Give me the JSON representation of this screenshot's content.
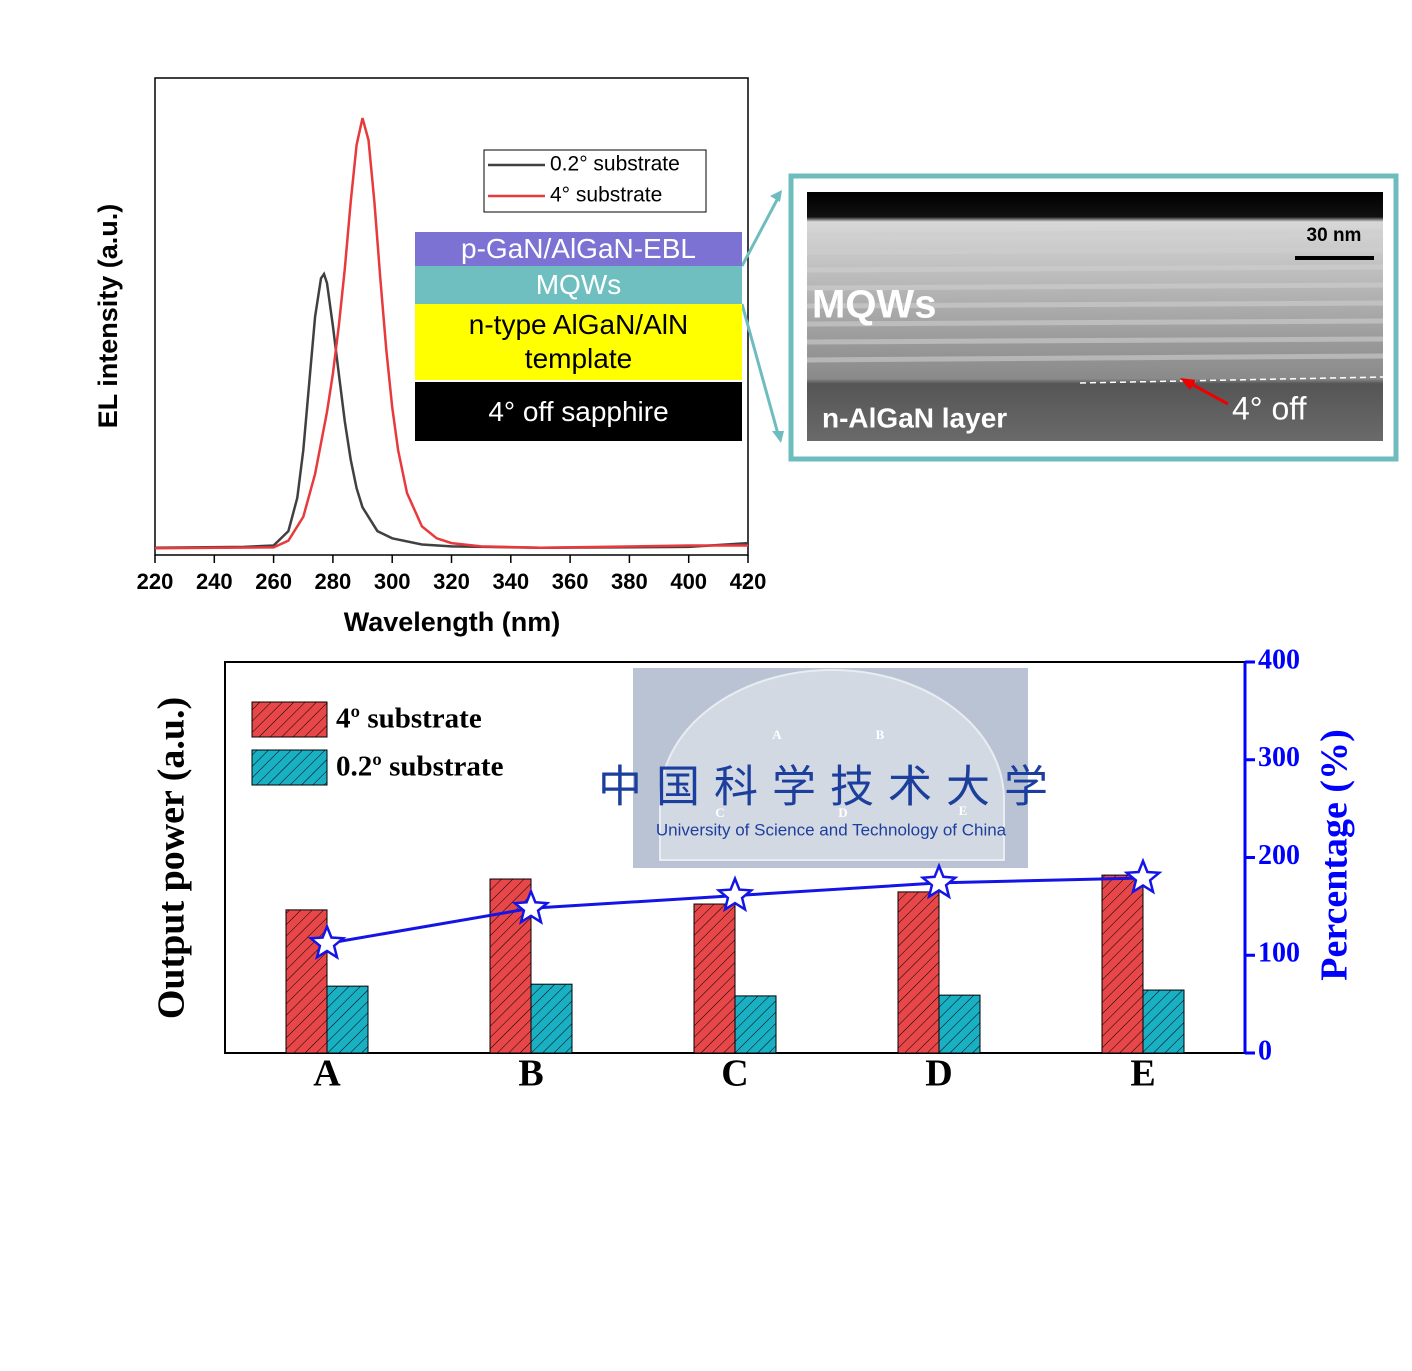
{
  "chart_data": [
    {
      "type": "line",
      "x_label": "Wavelength (nm)",
      "y_label": "EL intensity (a.u.)",
      "xlim": [
        220,
        420
      ],
      "xticks": [
        220,
        240,
        260,
        280,
        300,
        320,
        340,
        360,
        380,
        400,
        420
      ],
      "ylim": [
        0,
        1
      ],
      "legend": "upper right",
      "series": [
        {
          "name": "0.2° substrate",
          "color": "#404040",
          "x": [
            220,
            250,
            260,
            265,
            268,
            270,
            272,
            274,
            276,
            277,
            278,
            280,
            282,
            284,
            286,
            288,
            290,
            295,
            300,
            310,
            320,
            350,
            400,
            420
          ],
          "values": [
            0.015,
            0.017,
            0.02,
            0.05,
            0.12,
            0.22,
            0.36,
            0.5,
            0.58,
            0.589,
            0.57,
            0.48,
            0.38,
            0.28,
            0.2,
            0.14,
            0.1,
            0.05,
            0.035,
            0.022,
            0.018,
            0.015,
            0.017,
            0.025
          ]
        },
        {
          "name": "4° substrate",
          "color": "#e8393c",
          "x": [
            220,
            260,
            265,
            270,
            274,
            278,
            280,
            282,
            284,
            286,
            288,
            290,
            292,
            294,
            296,
            298,
            300,
            302,
            305,
            310,
            315,
            320,
            330,
            350,
            400,
            420
          ],
          "values": [
            0.014,
            0.016,
            0.03,
            0.08,
            0.17,
            0.3,
            0.38,
            0.48,
            0.6,
            0.74,
            0.86,
            0.916,
            0.87,
            0.74,
            0.58,
            0.43,
            0.31,
            0.22,
            0.13,
            0.06,
            0.035,
            0.025,
            0.018,
            0.015,
            0.02,
            0.02
          ]
        }
      ],
      "annotations": {
        "layers": [
          {
            "label": "p-GaN/AlGaN-EBL",
            "color": "#7b72d4"
          },
          {
            "label": "MQWs",
            "color": "#6fbfc0"
          },
          {
            "label": "n-type AlGaN/AlN template",
            "color": "#ffff00"
          },
          {
            "label": "4°  off sapphire",
            "color": "#000000"
          }
        ],
        "tem": {
          "scale_bar": "30 nm",
          "layer_top": "MQWs",
          "layer_bottom": "n-AlGaN layer",
          "offcut": "4°  off"
        }
      }
    },
    {
      "type": "bar",
      "categories": [
        "A",
        "B",
        "C",
        "D",
        "E"
      ],
      "y_label": "Output power (a.u.)",
      "y2_label": "Percentage (%)",
      "ylim": [
        0,
        1
      ],
      "y2lim": [
        0,
        400
      ],
      "y2ticks": [
        0,
        100,
        200,
        300,
        400
      ],
      "legend": "upper left",
      "series": [
        {
          "name": "4º substrate",
          "color": "#e8474a",
          "values": [
            0.366,
            0.445,
            0.381,
            0.412,
            0.455
          ]
        },
        {
          "name": "0.2º substrate",
          "color": "#1ab0c4",
          "values": [
            0.171,
            0.176,
            0.146,
            0.148,
            0.161
          ]
        },
        {
          "type": "line",
          "marker": "star",
          "axis": "y2",
          "color": "#1414e6",
          "values": [
            112,
            148,
            161,
            174,
            179
          ]
        }
      ],
      "inset": {
        "wafer_labels": [
          "A",
          "B",
          "C",
          "D",
          "E"
        ],
        "logo_cn": "中国科学技术大学",
        "logo_en": "University of Science and Technology of China"
      }
    }
  ]
}
